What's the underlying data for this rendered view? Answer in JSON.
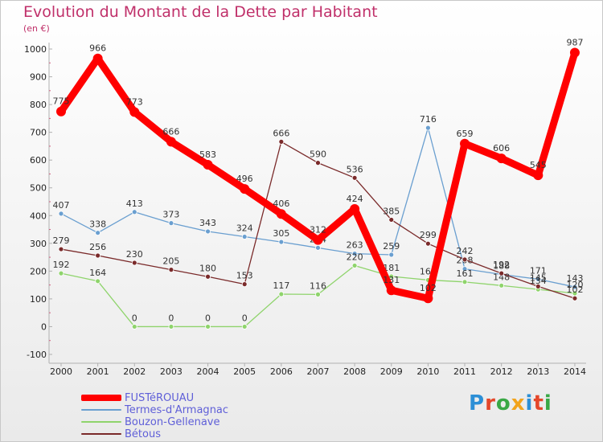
{
  "chart_data": {
    "type": "line",
    "title": "Evolution du Montant de la Dette par Habitant",
    "unit_label": "(en €)",
    "x": [
      "2000",
      "2001",
      "2002",
      "2003",
      "2004",
      "2005",
      "2006",
      "2007",
      "2008",
      "2009",
      "2010",
      "2011",
      "2012",
      "2013",
      "2014"
    ],
    "ylim": [
      -100,
      1000
    ],
    "yticks": [
      -100,
      0,
      100,
      200,
      300,
      400,
      500,
      600,
      700,
      800,
      900,
      1000
    ],
    "grid": false,
    "legend_position": "bottom-left",
    "series": [
      {
        "name": "Termes-d'Armagnac",
        "color": "#6a9fd0",
        "values": [
          407,
          338,
          413,
          373,
          343,
          324,
          305,
          284,
          263,
          259,
          716,
          208,
          188,
          171,
          143
        ]
      },
      {
        "name": "Bouzon-Gellenave",
        "color": "#8fd46c",
        "values": [
          192,
          164,
          0,
          0,
          0,
          0,
          117,
          116,
          220,
          181,
          168,
          161,
          148,
          134,
          120
        ]
      },
      {
        "name": "Bétous",
        "color": "#7a2a2a",
        "values": [
          279,
          256,
          230,
          205,
          180,
          153,
          666,
          590,
          536,
          385,
          299,
          242,
          192,
          145,
          102
        ]
      },
      {
        "name": "FUSTéROUAU",
        "color": "#ff0000",
        "values": [
          775,
          966,
          773,
          666,
          583,
          496,
          406,
          312,
          424,
          131,
          102,
          659,
          606,
          545,
          987
        ]
      }
    ],
    "legend_order": [
      "FUSTéROUAU",
      "Termes-d'Armagnac",
      "Bouzon-Gellenave",
      "Bétous"
    ]
  },
  "brand": {
    "logo_text": [
      "P",
      "r",
      "o",
      "x",
      "i",
      "t",
      "i"
    ]
  }
}
